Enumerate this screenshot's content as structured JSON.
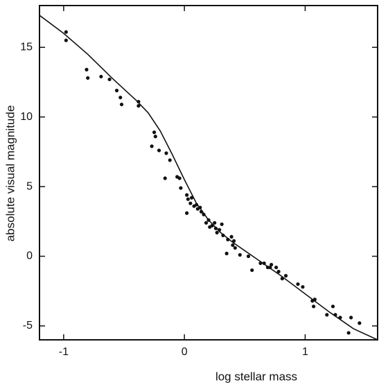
{
  "chart_data": {
    "type": "scatter",
    "x_label": "log stellar mass",
    "y_label": "absolute visual magnitude",
    "xlim": [
      -1.2,
      1.6
    ],
    "ylim": [
      -6,
      18
    ],
    "xticks": [
      -1,
      0,
      1
    ],
    "yticks": [
      -5,
      0,
      5,
      10,
      15
    ],
    "grid": false,
    "series": [
      {
        "marker": "dot",
        "color": "#111",
        "x": [
          -0.98,
          -0.98,
          -0.81,
          -0.8,
          -0.69,
          -0.62,
          -0.56,
          -0.53,
          -0.52,
          -0.38,
          -0.38,
          -0.25,
          -0.24,
          -0.27,
          -0.21,
          -0.15,
          -0.12,
          -0.16,
          -0.06,
          -0.04,
          -0.03,
          0.02,
          0.03,
          0.06,
          0.05,
          0.08,
          0.1,
          0.11,
          0.13,
          0.14,
          0.16,
          0.02,
          0.18,
          0.2,
          0.21,
          0.23,
          0.25,
          0.26,
          0.27,
          0.29,
          0.31,
          0.32,
          0.36,
          0.39,
          0.41,
          0.4,
          0.42,
          0.35,
          0.46,
          0.53,
          0.56,
          0.63,
          0.66,
          0.69,
          0.71,
          0.72,
          0.76,
          0.78,
          0.81,
          0.84,
          0.94,
          0.98,
          1.06,
          1.08,
          1.07,
          1.18,
          1.23,
          1.25,
          1.29,
          1.36,
          1.38,
          1.45
        ],
        "values": [
          16.1,
          15.5,
          13.4,
          12.8,
          12.9,
          12.7,
          11.9,
          11.4,
          10.9,
          11.1,
          10.8,
          8.9,
          8.6,
          7.9,
          7.6,
          7.4,
          6.9,
          5.6,
          5.7,
          5.6,
          4.9,
          4.4,
          4.1,
          4.2,
          3.8,
          3.6,
          3.7,
          3.4,
          3.5,
          3.2,
          3.0,
          3.1,
          2.4,
          2.6,
          2.1,
          2.2,
          2.4,
          2.0,
          1.7,
          1.9,
          2.3,
          1.5,
          1.2,
          1.4,
          1.1,
          0.8,
          0.6,
          0.2,
          0.1,
          0.0,
          -1.0,
          -0.5,
          -0.5,
          -0.8,
          -0.8,
          -0.6,
          -0.8,
          -1.1,
          -1.6,
          -1.4,
          -2.0,
          -2.2,
          -3.2,
          -3.1,
          -3.6,
          -4.2,
          -3.6,
          -4.2,
          -4.4,
          -5.5,
          -4.4,
          -4.8
        ]
      },
      {
        "marker": "line",
        "color": "#111",
        "x": [
          -1.2,
          -1.0,
          -0.8,
          -0.6,
          -0.4,
          -0.3,
          -0.2,
          -0.1,
          0.0,
          0.1,
          0.2,
          0.3,
          0.4,
          0.5,
          0.6,
          0.8,
          1.0,
          1.2,
          1.4,
          1.6
        ],
        "values": [
          17.3,
          16.0,
          14.5,
          12.8,
          11.2,
          10.3,
          9.0,
          7.3,
          5.5,
          3.8,
          2.6,
          1.7,
          1.0,
          0.4,
          -0.2,
          -1.4,
          -2.7,
          -4.0,
          -5.2,
          -6.0
        ]
      }
    ]
  }
}
